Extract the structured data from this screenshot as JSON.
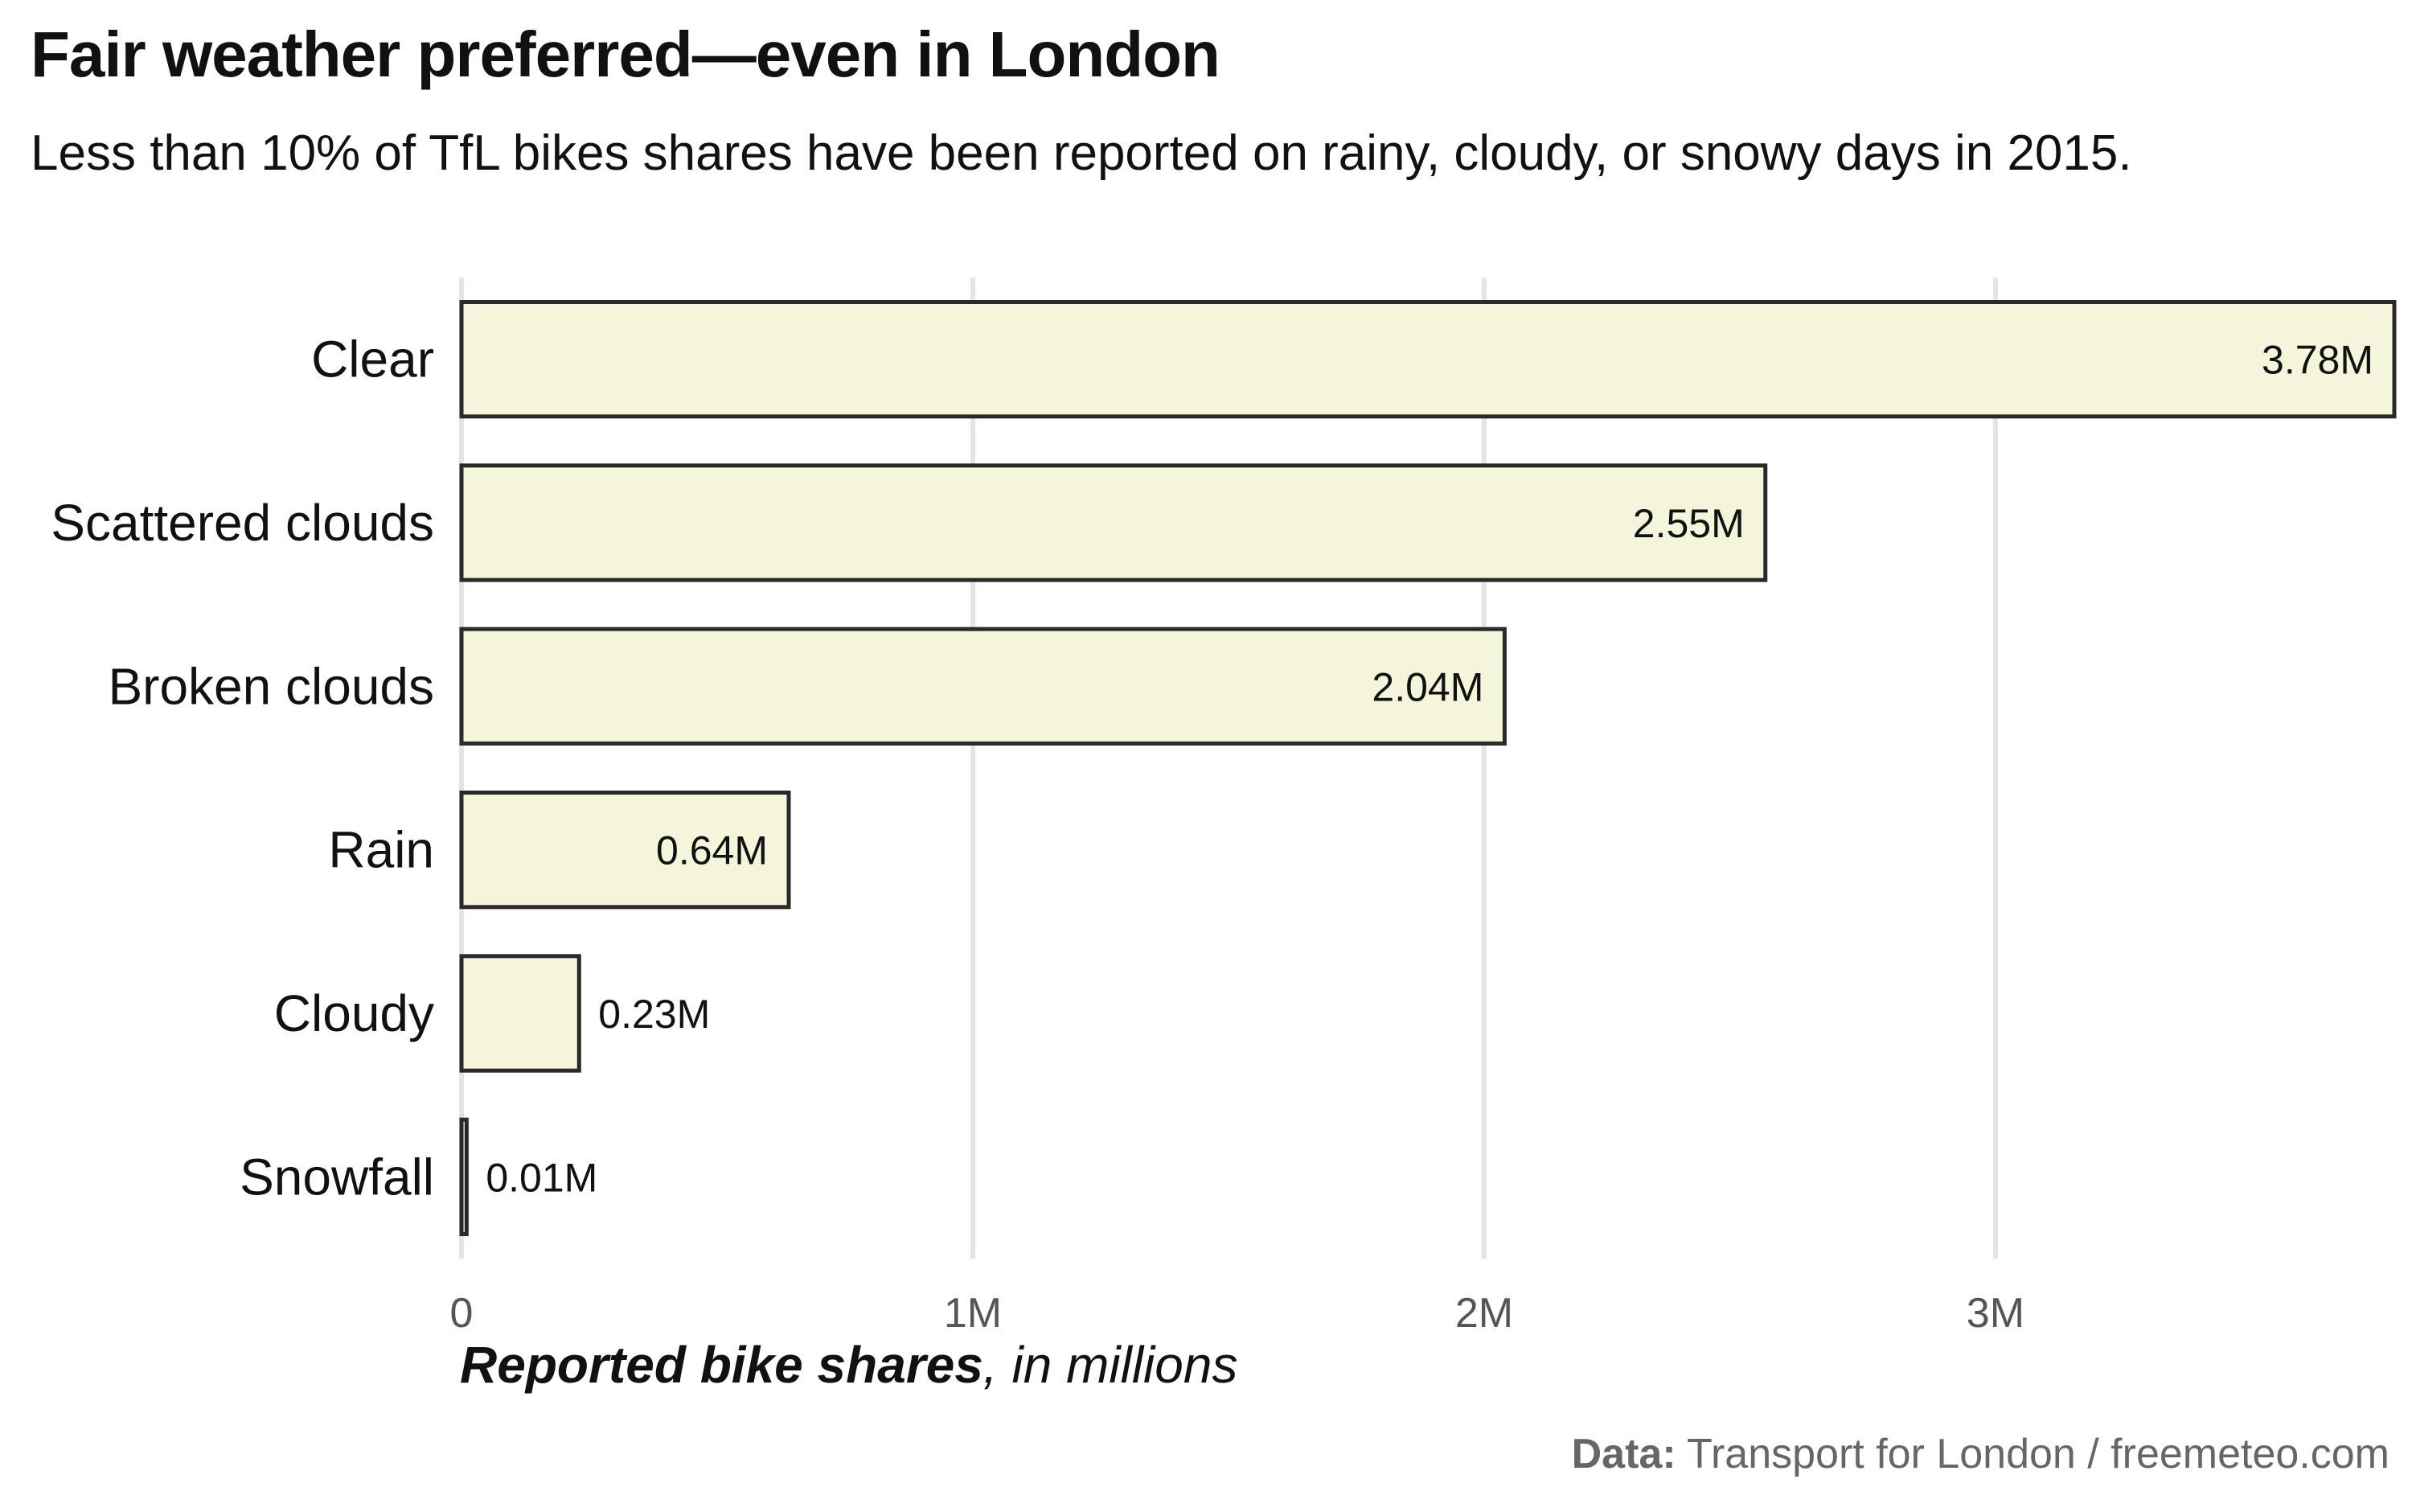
{
  "title": "Fair weather preferred—even in London",
  "subtitle": "Less than 10% of TfL bikes shares have been reported on rainy, cloudy, or snowy days in 2015.",
  "x_axis_title": {
    "bold": "Reported bike shares",
    "rest": ", in millions"
  },
  "source": {
    "label": "Data:",
    "text": " Transport for London / freemeteo.com"
  },
  "colors": {
    "bar_fill": "#f5f5dc",
    "bar_outline": "#2a2a2a",
    "grid": "#e4e4e4"
  },
  "chart_data": {
    "type": "bar",
    "orientation": "horizontal",
    "categories": [
      "Clear",
      "Scattered clouds",
      "Broken clouds",
      "Rain",
      "Cloudy",
      "Snowfall"
    ],
    "values": [
      3.78,
      2.55,
      2.04,
      0.64,
      0.23,
      0.01
    ],
    "value_labels": [
      "3.78M",
      "2.55M",
      "2.04M",
      "0.64M",
      "0.23M",
      "0.01M"
    ],
    "xlim": [
      0,
      3.78
    ],
    "xticks": [
      0,
      1,
      2,
      3
    ],
    "xtick_labels": [
      "0",
      "1M",
      "2M",
      "3M"
    ],
    "grid": "vertical major",
    "legend": "none"
  }
}
